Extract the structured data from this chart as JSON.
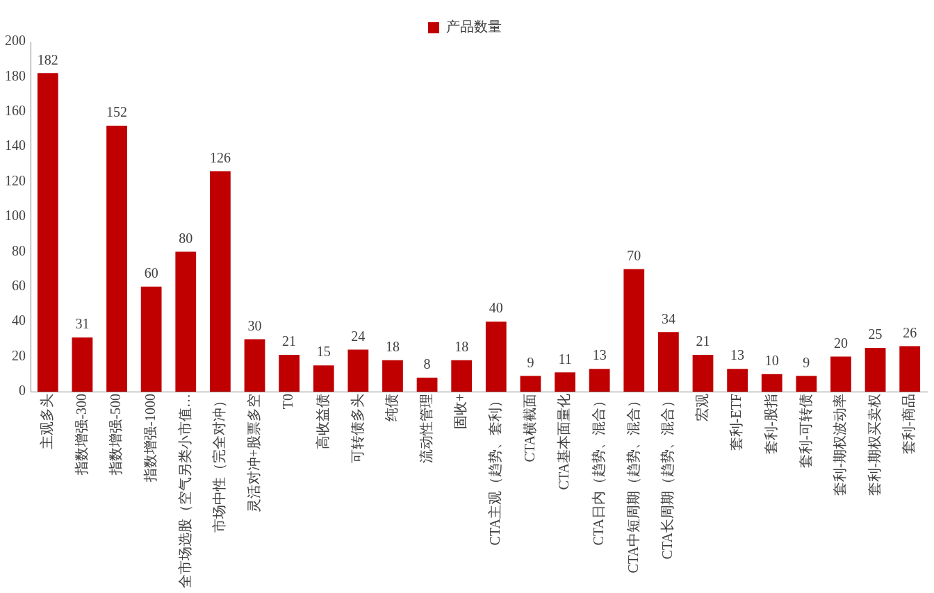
{
  "chart_data": {
    "type": "bar",
    "categories": [
      "主观多头",
      "指数增强-300",
      "指数增强-500",
      "指数增强-1000",
      "全市场选股（空气另类小市值…",
      "市场中性（完全对冲）",
      "灵活对冲+股票多空",
      "T0",
      "高收益债",
      "可转债多头",
      "纯债",
      "流动性管理",
      "固收+",
      "CTA主观（趋势、套利）",
      "CTA横截面",
      "CTA基本面量化",
      "CTA日内（趋势、混合）",
      "CTA中短周期（趋势、混合）",
      "CTA长周期（趋势、混合）",
      "宏观",
      "套利-ETF",
      "套利-股指",
      "套利-可转债",
      "套利-期权波动率",
      "套利-期权买卖权",
      "套利-商品"
    ],
    "series": [
      {
        "name": "产品数量",
        "color": "#c00000",
        "values": [
          182,
          31,
          152,
          60,
          80,
          126,
          30,
          21,
          15,
          24,
          18,
          8,
          18,
          40,
          9,
          11,
          13,
          70,
          34,
          21,
          13,
          10,
          9,
          20,
          25,
          26
        ]
      }
    ],
    "ylim": [
      0,
      200
    ],
    "yticks": [
      0,
      20,
      40,
      60,
      80,
      100,
      120,
      140,
      160,
      180,
      200
    ],
    "grid": false,
    "legend": "top",
    "data_labels": true
  }
}
